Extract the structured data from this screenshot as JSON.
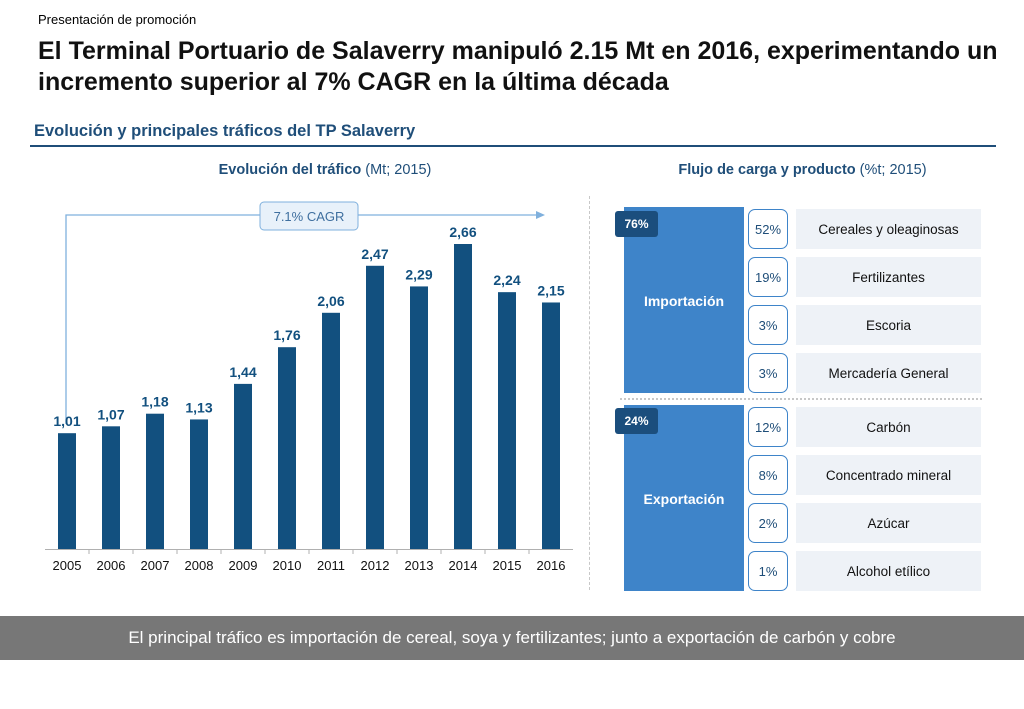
{
  "header": {
    "kicker": "Presentación de promoción",
    "title": "El Terminal Portuario de Salaverry manipuló 2.15 Mt en 2016, experimentando un incremento superior al 7% CAGR en la última década",
    "section_title": "Evolución y principales tráficos del TP Salaverry"
  },
  "left_panel": {
    "title_bold": "Evolución del tráfico",
    "title_rest": " (Mt; 2015)"
  },
  "right_panel": {
    "title_bold": "Flujo de carga y producto",
    "title_rest": " (%t; 2015)",
    "groups": [
      {
        "name": "Importación",
        "share": "76%",
        "items": [
          {
            "pct": "52%",
            "label": "Cereales y oleaginosas"
          },
          {
            "pct": "19%",
            "label": "Fertilizantes"
          },
          {
            "pct": "3%",
            "label": "Escoria"
          },
          {
            "pct": "3%",
            "label": "Mercadería General"
          }
        ]
      },
      {
        "name": "Exportación",
        "share": "24%",
        "items": [
          {
            "pct": "12%",
            "label": "Carbón"
          },
          {
            "pct": "8%",
            "label": "Concentrado mineral"
          },
          {
            "pct": "2%",
            "label": "Azúcar"
          },
          {
            "pct": "1%",
            "label": "Alcohol etílico"
          }
        ]
      }
    ]
  },
  "chart_data": {
    "type": "bar",
    "categories": [
      "2005",
      "2006",
      "2007",
      "2008",
      "2009",
      "2010",
      "2011",
      "2012",
      "2013",
      "2014",
      "2015",
      "2016"
    ],
    "values": [
      1.01,
      1.07,
      1.18,
      1.13,
      1.44,
      1.76,
      2.06,
      2.47,
      2.29,
      2.66,
      2.24,
      2.15
    ],
    "value_labels": [
      "1,01",
      "1,07",
      "1,18",
      "1,13",
      "1,44",
      "1,76",
      "2,06",
      "2,47",
      "2,29",
      "2,66",
      "2,24",
      "2,15"
    ],
    "annotation": "7.1% CAGR",
    "title": "Evolución del tráfico (Mt; 2015)",
    "ylim": [
      0,
      2.66
    ],
    "bar_color": "#12507f",
    "grid": false
  },
  "footer": {
    "conclusion": "El principal tráfico es importación de cereal, soya y fertilizantes; junto a exportación de carbón y cobre"
  }
}
